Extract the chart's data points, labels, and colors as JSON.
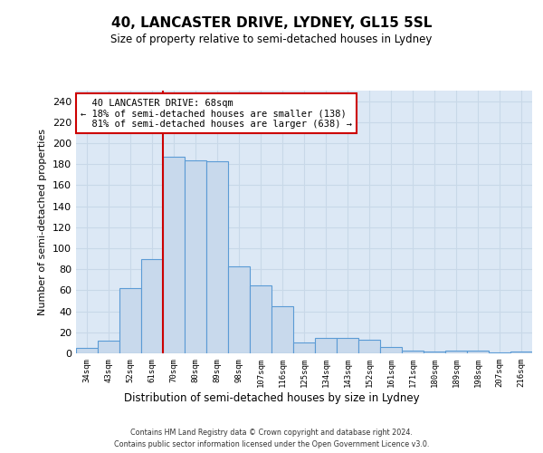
{
  "title": "40, LANCASTER DRIVE, LYDNEY, GL15 5SL",
  "subtitle": "Size of property relative to semi-detached houses in Lydney",
  "xlabel": "Distribution of semi-detached houses by size in Lydney",
  "ylabel": "Number of semi-detached properties",
  "categories": [
    "34sqm",
    "43sqm",
    "52sqm",
    "61sqm",
    "70sqm",
    "80sqm",
    "89sqm",
    "98sqm",
    "107sqm",
    "116sqm",
    "125sqm",
    "134sqm",
    "143sqm",
    "152sqm",
    "161sqm",
    "171sqm",
    "180sqm",
    "189sqm",
    "198sqm",
    "207sqm",
    "216sqm"
  ],
  "values": [
    5,
    12,
    62,
    90,
    187,
    184,
    183,
    83,
    65,
    45,
    10,
    15,
    15,
    13,
    6,
    3,
    2,
    3,
    3,
    1,
    2
  ],
  "bar_color": "#c8d9ec",
  "bar_edge_color": "#5b9bd5",
  "grid_color": "#c8d8e8",
  "background_color": "#dce8f5",
  "property_line_label": "40 LANCASTER DRIVE: 68sqm",
  "smaller_pct": "18%",
  "smaller_count": 138,
  "larger_pct": "81%",
  "larger_count": 638,
  "annotation_box_color": "#cc0000",
  "ylim": [
    0,
    250
  ],
  "yticks": [
    0,
    20,
    40,
    60,
    80,
    100,
    120,
    140,
    160,
    180,
    200,
    220,
    240
  ],
  "footer_line1": "Contains HM Land Registry data © Crown copyright and database right 2024.",
  "footer_line2": "Contains public sector information licensed under the Open Government Licence v3.0."
}
